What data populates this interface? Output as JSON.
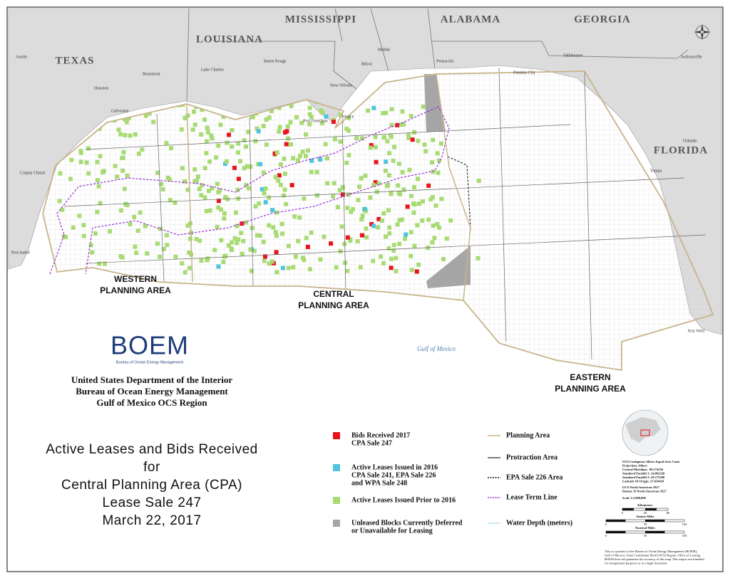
{
  "map": {
    "states": [
      "MISSISSIPPI",
      "ALABAMA",
      "GEORGIA",
      "LOUISIANA",
      "TEXAS",
      "FLORIDA"
    ],
    "cities": [
      "Austin",
      "Houston",
      "Beaumont",
      "Lake Charles",
      "Baton Rouge",
      "New Orleans",
      "Mobile",
      "Biloxi",
      "Pensacola",
      "Panama City",
      "Tallahassee",
      "Jacksonville",
      "Orlando",
      "Tampa",
      "Galveston",
      "Corpus Christi",
      "Port Isabel",
      "Key West",
      "Port Fourchon",
      "Venice"
    ],
    "planning_areas": [
      [
        "WESTERN",
        "PLANNING AREA"
      ],
      [
        "CENTRAL",
        "PLANNING AREA"
      ],
      [
        "EASTERN",
        "PLANNING AREA"
      ]
    ],
    "water_label": "Gulf of Mexico"
  },
  "logo": {
    "name": "BOEM",
    "subtitle": "Bureau of Ocean Energy Management"
  },
  "agency": [
    "United States Department of the Interior",
    "Bureau of Ocean Energy Management",
    "Gulf of Mexico OCS Region"
  ],
  "title": [
    "Active Leases and Bids Received",
    "for",
    "Central Planning Area (CPA)",
    "Lease Sale 247",
    "March 22, 2017"
  ],
  "legend": {
    "fills": [
      {
        "lines": [
          "Bids Received 2017",
          "CPA Sale 247"
        ],
        "color": "#e8141c"
      },
      {
        "lines": [
          "Active Leases Issued in 2016",
          "CPA Sale 241, EPA Sale 226",
          "and WPA Sale 248"
        ],
        "color": "#4fc3e0"
      },
      {
        "lines": [
          "Active Leases Issued Prior to 2016"
        ],
        "color": "#a8db74"
      },
      {
        "lines": [
          "Unleased Blocks Currently Deferred",
          "or Unavailable for Leasing"
        ],
        "color": "#a6a6a6"
      }
    ],
    "lines": [
      {
        "label": "Planning Area",
        "color": "#c8b48a"
      },
      {
        "label": "Protraction Area",
        "color": "#555555"
      },
      {
        "label": "EPA Sale 226 Area",
        "color": "#111111"
      },
      {
        "label": "Lease Term Line",
        "color": "#9b30d9"
      },
      {
        "label": "Water Depth (meters)",
        "color": "#bfe3f2"
      }
    ]
  },
  "projection": [
    "USA Contiguous Albers Equal Area Conic",
    "Projection: Albers",
    "Central Meridian: -89.174336",
    "Standard Parallel 1: 24.092320",
    "Standard Parallel 2: 29.175500",
    "Latitude Of Origin: 27.654410",
    "GCS North American 1927",
    "Datum: D North American 1927"
  ],
  "scale": {
    "ratio": "Scale 1:5,000,000",
    "bars": [
      {
        "unit": "Kilometers",
        "ticks": [
          "0",
          "40",
          "80"
        ]
      },
      {
        "unit": "Statute Miles",
        "ticks": [
          "0",
          "50",
          "100"
        ]
      },
      {
        "unit": "Nautical Miles",
        "ticks": [
          "0",
          "50",
          "100"
        ]
      }
    ]
  },
  "disclaimer": [
    "This is a product of the Bureau of Ocean Energy Management (BOEM),",
    "Gulf of Mexico, Outer Continental Shelf (OCS) Region, Office of Leasing.",
    "BOEM does not guarantee the accuracy of this map. This map is not intended",
    "for navigational purposes or as a legal document."
  ]
}
